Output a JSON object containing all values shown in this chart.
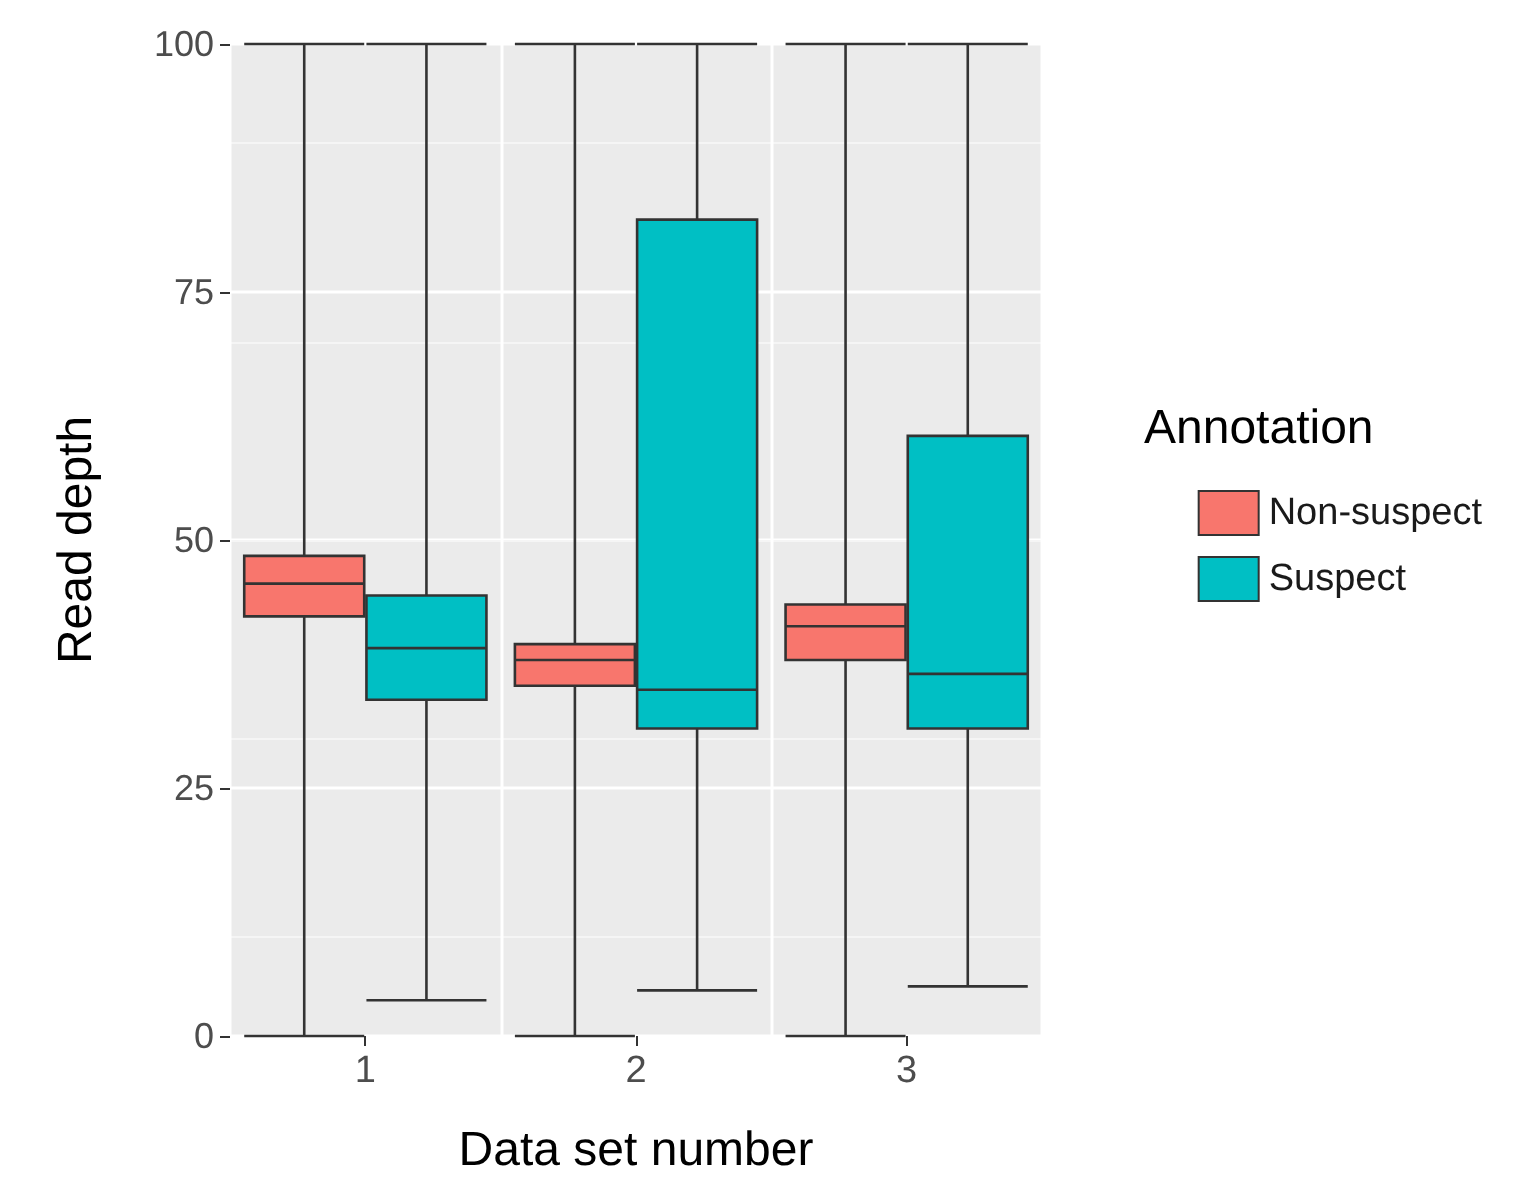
{
  "chart_data": {
    "type": "box",
    "xlabel": "Data set number",
    "ylabel": "Read depth",
    "legend_title": "Annotation",
    "legend": "right",
    "grid": true,
    "categories": [
      "1",
      "2",
      "3"
    ],
    "ylim": [
      0,
      100
    ],
    "yticks": [
      0,
      25,
      50,
      75,
      100
    ],
    "series": [
      {
        "name": "Non-suspect",
        "color": "#f8766d",
        "boxes": [
          {
            "low": 0,
            "q1": 42.3,
            "median": 45.6,
            "q3": 48.4,
            "high": 100
          },
          {
            "low": 0,
            "q1": 35.3,
            "median": 37.9,
            "q3": 39.5,
            "high": 100
          },
          {
            "low": 0,
            "q1": 37.9,
            "median": 41.3,
            "q3": 43.5,
            "high": 100
          }
        ]
      },
      {
        "name": "Suspect",
        "color": "#00bfc4",
        "boxes": [
          {
            "low": 3.6,
            "q1": 33.9,
            "median": 39.1,
            "q3": 44.4,
            "high": 100
          },
          {
            "low": 4.6,
            "q1": 31,
            "median": 34.9,
            "q3": 82.3,
            "high": 100
          },
          {
            "low": 5,
            "q1": 31,
            "median": 36.5,
            "q3": 60.5,
            "high": 100
          }
        ]
      }
    ]
  }
}
